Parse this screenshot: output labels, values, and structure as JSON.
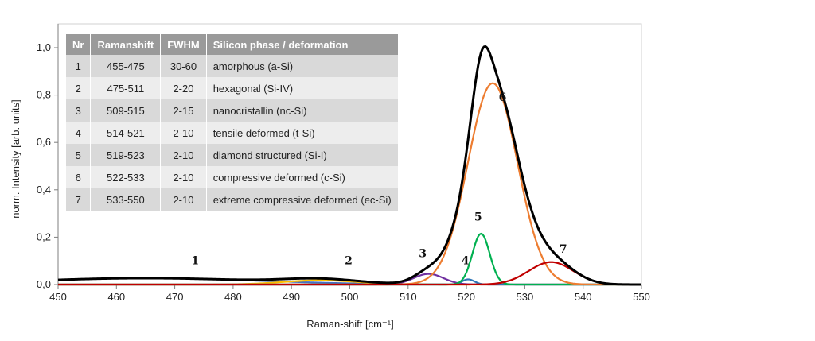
{
  "chart_data": {
    "type": "line",
    "xlabel": "Raman-shift [cm⁻¹]",
    "ylabel": "norm. Intensity [arb. units]",
    "xlim": [
      450,
      550
    ],
    "ylim": [
      0,
      1.0
    ],
    "x_ticks": [
      "450",
      "460",
      "470",
      "480",
      "490",
      "500",
      "510",
      "520",
      "530",
      "540",
      "550"
    ],
    "y_ticks": [
      "0,0",
      "0,2",
      "0,4",
      "0,6",
      "0,8",
      "1,0"
    ],
    "grid": false,
    "colors": {
      "sum": "#000000",
      "p1": "#4472c4",
      "p2": "#ffc000",
      "p3": "#7030a0",
      "p4": "#2e75b6",
      "p5": "#00b050",
      "p6": "#ed7d31",
      "p7": "#c00000"
    },
    "peaks": [
      {
        "label": "1",
        "center": 465,
        "height": 0.027,
        "fwhm": 45
      },
      {
        "label": "2",
        "center": 495,
        "height": 0.018,
        "fwhm": 15
      },
      {
        "label": "3",
        "center": 513.5,
        "height": 0.045,
        "fwhm": 6
      },
      {
        "label": "4",
        "center": 520.3,
        "height": 0.022,
        "fwhm": 2.5
      },
      {
        "label": "5",
        "center": 522.5,
        "height": 0.215,
        "fwhm": 3.5
      },
      {
        "label": "6",
        "center": 524.5,
        "height": 0.85,
        "fwhm": 10
      },
      {
        "label": "7",
        "center": 534.5,
        "height": 0.095,
        "fwhm": 9
      }
    ],
    "sum_peak_value": 1.0
  },
  "table": {
    "headers": [
      "Nr",
      "Ramanshift",
      "FWHM",
      "Silicon phase / deformation"
    ],
    "rows": [
      [
        "1",
        "455-475",
        "30-60",
        "amorphous (a-Si)"
      ],
      [
        "2",
        "475-511",
        "2-20",
        "hexagonal (Si-IV)"
      ],
      [
        "3",
        "509-515",
        "2-15",
        "nanocristallin (nc-Si)"
      ],
      [
        "4",
        "514-521",
        "2-10",
        "tensile deformed (t-Si)"
      ],
      [
        "5",
        "519-523",
        "2-10",
        "diamond structured (Si-I)"
      ],
      [
        "6",
        "522-533",
        "2-10",
        "compressive deformed (c-Si)"
      ],
      [
        "7",
        "533-550",
        "2-10",
        "extreme compressive deformed (ec-Si)"
      ]
    ]
  }
}
